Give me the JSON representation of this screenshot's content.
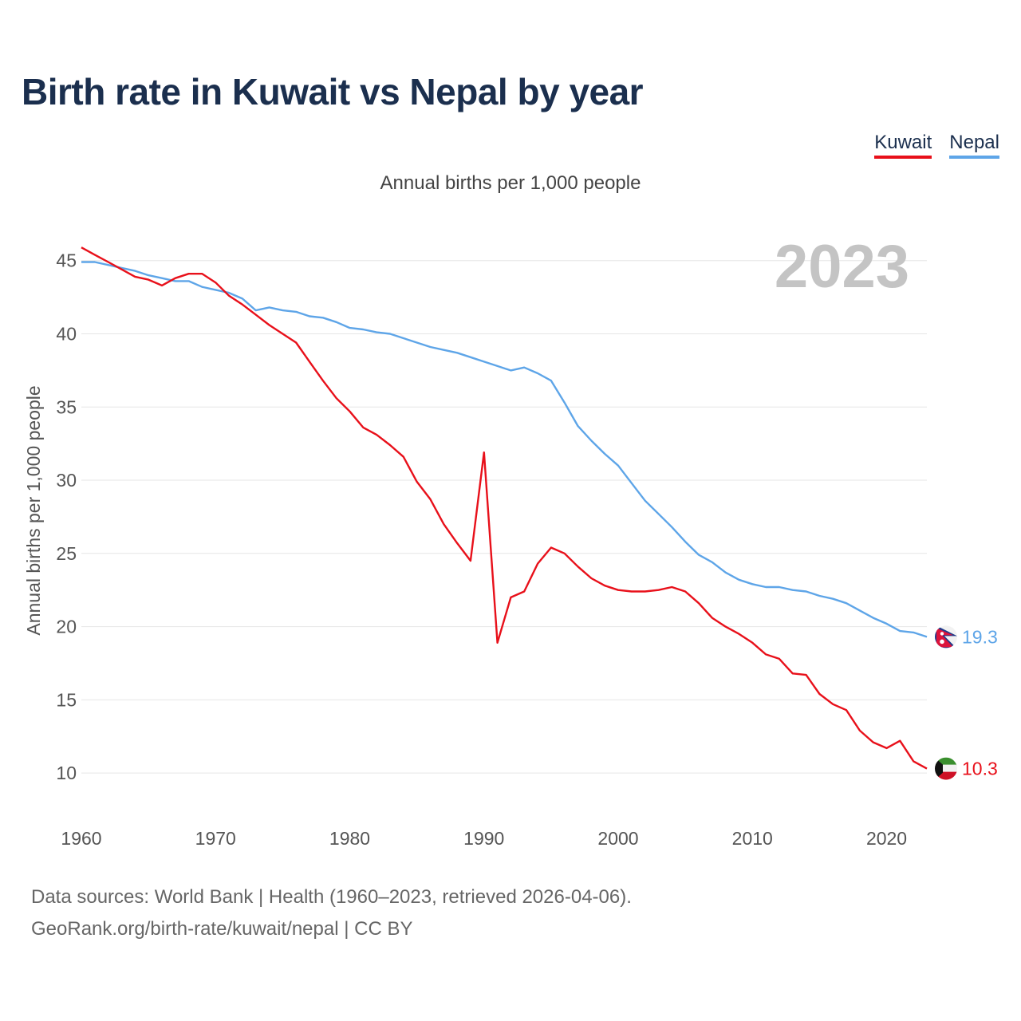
{
  "title": "Birth rate in Kuwait vs Nepal by year",
  "legend": [
    {
      "name": "Kuwait",
      "color": "#e8101a"
    },
    {
      "name": "Nepal",
      "color": "#5ea5e8"
    }
  ],
  "source": {
    "line1": "Data sources: World Bank | Health (1960–2023, retrieved 2026-04-06).",
    "line2": "GeoRank.org/birth-rate/kuwait/nepal | CC BY"
  },
  "chart_data": {
    "type": "line",
    "title": "Birth rate in Kuwait vs Nepal by year",
    "subtitle": "Annual births per 1,000 people",
    "ylabel": "Annual births per 1,000 people",
    "xlabel": "",
    "year_label": "2023",
    "xlim": [
      1960,
      2023
    ],
    "ylim": [
      7.5,
      47
    ],
    "x_ticks": [
      1960,
      1970,
      1980,
      1990,
      2000,
      2010,
      2020
    ],
    "y_ticks": [
      10,
      15,
      20,
      25,
      30,
      35,
      40,
      45
    ],
    "grid": true,
    "legend_position": "top-right",
    "x": [
      1960,
      1961,
      1962,
      1963,
      1964,
      1965,
      1966,
      1967,
      1968,
      1969,
      1970,
      1971,
      1972,
      1973,
      1974,
      1975,
      1976,
      1977,
      1978,
      1979,
      1980,
      1981,
      1982,
      1983,
      1984,
      1985,
      1986,
      1987,
      1988,
      1989,
      1990,
      1991,
      1992,
      1993,
      1994,
      1995,
      1996,
      1997,
      1998,
      1999,
      2000,
      2001,
      2002,
      2003,
      2004,
      2005,
      2006,
      2007,
      2008,
      2009,
      2010,
      2011,
      2012,
      2013,
      2014,
      2015,
      2016,
      2017,
      2018,
      2019,
      2020,
      2021,
      2022,
      2023
    ],
    "series": [
      {
        "name": "Kuwait",
        "color": "#e8101a",
        "end_label": "10.3",
        "values": [
          45.9,
          45.4,
          44.9,
          44.4,
          43.9,
          43.7,
          43.3,
          43.8,
          44.1,
          44.1,
          43.5,
          42.6,
          42.0,
          41.3,
          40.6,
          40.0,
          39.4,
          38.1,
          36.8,
          35.6,
          34.7,
          33.6,
          33.1,
          32.4,
          31.6,
          29.9,
          28.7,
          27.0,
          25.7,
          24.5,
          31.9,
          18.9,
          22.0,
          22.4,
          24.3,
          25.4,
          25.0,
          24.1,
          23.3,
          22.8,
          22.5,
          22.4,
          22.4,
          22.5,
          22.7,
          22.4,
          21.6,
          20.6,
          20.0,
          19.5,
          18.9,
          18.1,
          17.8,
          16.8,
          16.7,
          15.4,
          14.7,
          14.3,
          12.9,
          12.1,
          11.7,
          12.2,
          10.8,
          10.3
        ]
      },
      {
        "name": "Nepal",
        "color": "#5ea5e8",
        "end_label": "19.3",
        "values": [
          44.9,
          44.9,
          44.7,
          44.5,
          44.3,
          44.0,
          43.8,
          43.6,
          43.6,
          43.2,
          43.0,
          42.8,
          42.4,
          41.6,
          41.8,
          41.6,
          41.5,
          41.2,
          41.1,
          40.8,
          40.4,
          40.3,
          40.1,
          40.0,
          39.7,
          39.4,
          39.1,
          38.9,
          38.7,
          38.4,
          38.1,
          37.8,
          37.5,
          37.7,
          37.3,
          36.8,
          35.3,
          33.7,
          32.7,
          31.8,
          31.0,
          29.8,
          28.6,
          27.7,
          26.8,
          25.8,
          24.9,
          24.4,
          23.7,
          23.2,
          22.9,
          22.7,
          22.7,
          22.5,
          22.4,
          22.1,
          21.9,
          21.6,
          21.1,
          20.6,
          20.2,
          19.7,
          19.6,
          19.3
        ]
      }
    ]
  }
}
